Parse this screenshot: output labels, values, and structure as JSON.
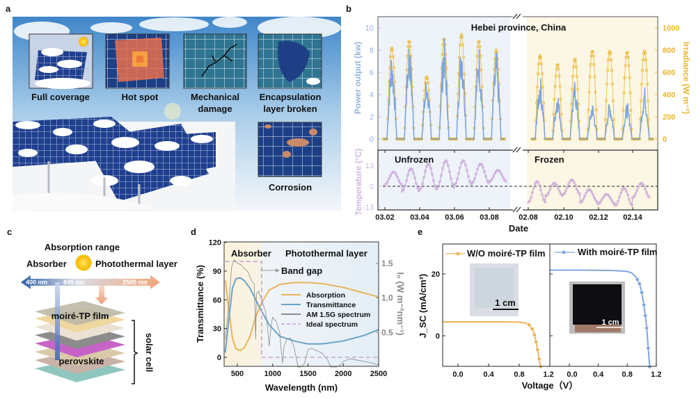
{
  "panel_letters": {
    "a": "a",
    "b": "b",
    "c": "c",
    "d": "d",
    "e": "e"
  },
  "panel_a": {
    "insets": [
      "Full coverage",
      "Hot spot",
      "Mechanical",
      "damage",
      "Encapsulation",
      "layer broken",
      "Corrosion"
    ]
  },
  "panel_c": {
    "title": "Absorption range",
    "left_label": "Absorber",
    "right_label": "Photothermal layer",
    "arrow_labels": [
      "400 nm",
      "845 nm",
      "2500 nm"
    ],
    "film_label": "moiré-TP film",
    "perovskite_label": "perovskite",
    "bracket_label": "solar cell"
  },
  "chart_data": [
    {
      "panel": "b-top",
      "type": "line",
      "annotation": "Hebei province, China",
      "ylabel": "Power output (kw)",
      "y2label": "Irradiance (W m⁻²)",
      "ylim": [
        0,
        10.5
      ],
      "y2lim": [
        0,
        1050
      ],
      "yticks": [
        "0",
        "2",
        "4",
        "6",
        "8",
        "10"
      ],
      "y2ticks": [
        "0",
        "200",
        "400",
        "600",
        "800",
        "1000"
      ],
      "x_segments": [
        {
          "dates": [
            "03.02",
            "03.03",
            "03.04",
            "03.05",
            "03.06",
            "03.07",
            "03.08"
          ],
          "power_daily_peak_kw": [
            8.1,
            9.1,
            5.6,
            9.2,
            9.3,
            8.6,
            8.0
          ],
          "irradiance_daily_peak": [
            820,
            880,
            560,
            900,
            940,
            880,
            800
          ]
        },
        {
          "dates": [
            "02.08",
            "02.09",
            "02.10",
            "02.11",
            "02.12",
            "02.13",
            "02.14"
          ],
          "power_daily_peak_kw": [
            5.7,
            4.3,
            5.3,
            3.3,
            3.5,
            3.3,
            4.8
          ],
          "irradiance_daily_peak": [
            750,
            670,
            720,
            790,
            790,
            780,
            790
          ]
        }
      ],
      "colors": {
        "power": "#7fa6de",
        "irradiance": "#eab52b"
      }
    },
    {
      "panel": "b-bottom",
      "type": "line",
      "ylabel": "Temperature (°C)",
      "xlabel": "Date",
      "ylim": [
        -14,
        19
      ],
      "yticks": [
        "-13",
        "0",
        "13"
      ],
      "xticks": [
        "03.02",
        "03.04",
        "03.06",
        "03.08",
        "02.08",
        "02.10",
        "02.12",
        "02.14"
      ],
      "region_labels": [
        "Unfrozen",
        "Frozen"
      ],
      "reference_line": 0,
      "series": [
        {
          "segment": "Unfrozen",
          "daily_max": [
            9,
            11,
            14,
            16,
            16,
            14,
            10
          ],
          "daily_min": [
            1,
            -3,
            -2,
            -1,
            1,
            2,
            3
          ]
        },
        {
          "segment": "Frozen",
          "daily_max": [
            3,
            2,
            4,
            -2,
            -5,
            -1,
            2
          ],
          "daily_min": [
            -10,
            -6,
            -5,
            -10,
            -11,
            -12,
            -7
          ]
        }
      ],
      "color": "#c9a6d8"
    },
    {
      "panel": "d",
      "type": "line",
      "xlabel": "Wavelength (nm)",
      "ylabel": "Transmittance (%)",
      "y2label": "I₀ (W m⁻²nm⁻¹)",
      "xlim": [
        315,
        2500
      ],
      "ylim": [
        -10,
        120
      ],
      "y2lim": [
        0,
        1.75
      ],
      "xticks": [
        "500",
        "1000",
        "1500",
        "2000",
        "2500"
      ],
      "yticks": [
        "0",
        "30",
        "60",
        "90",
        "120"
      ],
      "y2ticks": [
        "0.5",
        "1.0",
        "1.5"
      ],
      "region_labels": [
        "Absorber",
        "Photothermal layer"
      ],
      "annotation": "Band gap",
      "series": [
        {
          "name": "Absorption",
          "color": "#eab45a",
          "x": [
            330,
            380,
            430,
            480,
            540,
            600,
            680,
            760,
            845,
            950,
            1100,
            1300,
            1500,
            1700,
            2000,
            2300,
            2500
          ],
          "y": [
            80,
            50,
            20,
            9,
            7,
            10,
            22,
            42,
            57,
            70,
            76,
            78,
            78,
            77,
            73,
            67,
            63
          ]
        },
        {
          "name": "Transmittance",
          "color": "#6aa3c8",
          "x": [
            330,
            380,
            430,
            480,
            540,
            600,
            680,
            760,
            845,
            950,
            1100,
            1300,
            1500,
            1700,
            2000,
            2300,
            2500
          ],
          "y": [
            5,
            40,
            72,
            82,
            83,
            80,
            72,
            60,
            48,
            34,
            22,
            17,
            14,
            14,
            17,
            23,
            29
          ]
        },
        {
          "name": "AM 1.5G spectrum",
          "color": "#8a8a8a",
          "axis": "right",
          "x": [
            330,
            380,
            420,
            460,
            500,
            550,
            600,
            650,
            700,
            740,
            760,
            770,
            800,
            850,
            900,
            930,
            950,
            980,
            1000,
            1050,
            1100,
            1120,
            1140,
            1160,
            1200,
            1250,
            1300,
            1340,
            1360,
            1400,
            1450,
            1500,
            1550,
            1600,
            1700,
            1780,
            1820,
            1900,
            1950,
            2000,
            2050,
            2100,
            2200,
            2300,
            2400,
            2500
          ],
          "y": [
            0.4,
            0.9,
            1.45,
            1.55,
            1.5,
            1.48,
            1.42,
            1.38,
            1.25,
            1.2,
            0.4,
            1.05,
            1.1,
            0.95,
            0.8,
            0.55,
            0.3,
            0.6,
            0.72,
            0.66,
            0.5,
            0.25,
            0.05,
            0.3,
            0.4,
            0.42,
            0.3,
            0.1,
            0.0,
            0.0,
            0.05,
            0.25,
            0.27,
            0.25,
            0.2,
            0.1,
            0.0,
            0.0,
            0.02,
            0.08,
            0.1,
            0.12,
            0.1,
            0.08,
            0.06,
            0.03
          ]
        },
        {
          "name": "Ideal spectrum",
          "color": "#c8a2d4",
          "dashed": true,
          "x": [
            330,
            845,
            845,
            2500
          ],
          "y": [
            100,
            100,
            0,
            0
          ]
        }
      ]
    },
    {
      "panel": "e",
      "type": "line",
      "xlabel": "Voltage（V）",
      "ylabel": "J_SC (mA/cm²)",
      "ylim": [
        -10,
        29.5
      ],
      "yticks": [
        "0",
        "20"
      ],
      "subplots": [
        {
          "name": "W/O moiré-TP film",
          "color": "#eab45a",
          "xlim": [
            -0.2,
            1.2
          ],
          "xticks": [
            "0.0",
            "0.4",
            "0.8",
            "1.2"
          ],
          "x": [
            -0.2,
            0.2,
            0.6,
            0.8,
            0.88,
            0.93,
            0.97,
            1.0,
            1.02,
            1.04,
            1.06,
            1.08
          ],
          "y": [
            4.5,
            4.5,
            4.5,
            4.4,
            4.1,
            3.5,
            2.2,
            0.3,
            -2.0,
            -4.5,
            -7.5,
            -10
          ]
        },
        {
          "name": "With moiré-TP film",
          "color": "#7fa6de",
          "xlim": [
            -0.27,
            1.2
          ],
          "xticks": [
            "0.0",
            "0.4",
            "0.8",
            "1.2"
          ],
          "x": [
            -0.27,
            0.2,
            0.6,
            0.8,
            0.86,
            0.9,
            0.94,
            0.97,
            1.0,
            1.03,
            1.05,
            1.07,
            1.09,
            1.11
          ],
          "y": [
            21.2,
            21.2,
            21.1,
            20.8,
            20.3,
            19.5,
            18.2,
            16.8,
            14.0,
            10.0,
            6.5,
            2.5,
            -4.0,
            -10
          ]
        }
      ],
      "inset_scale_bar": "1 cm"
    }
  ]
}
